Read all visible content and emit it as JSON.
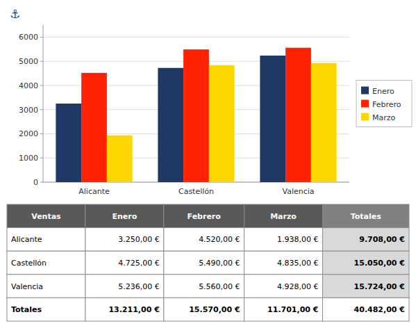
{
  "chart_data": [
    {
      "type": "bar",
      "annotations": [
        "⚓"
      ],
      "categories": [
        "Alicante",
        "Castellón",
        "Valencia"
      ],
      "series": [
        {
          "name": "Enero",
          "color": "#1F3864",
          "values": [
            3250,
            4725,
            5236
          ]
        },
        {
          "name": "Febrero",
          "color": "#FF2200",
          "values": [
            4520,
            5490,
            5560
          ]
        },
        {
          "name": "Marzo",
          "color": "#FFD700",
          "values": [
            1938,
            4835,
            4928
          ]
        }
      ],
      "ylim": [
        0,
        6500
      ],
      "yticks": [
        0,
        1000,
        2000,
        3000,
        4000,
        5000,
        6000
      ],
      "grid": true,
      "legend": "right"
    },
    {
      "type": "table",
      "columns": [
        "Ventas",
        "Enero",
        "Febrero",
        "Marzo",
        "Totales"
      ],
      "rows": [
        [
          "Alicante",
          "3.250,00 €",
          "4.520,00 €",
          "1.938,00 €",
          "9.708,00 €"
        ],
        [
          "Castellón",
          "4.725,00 €",
          "5.490,00 €",
          "4.835,00 €",
          "15.050,00 €"
        ],
        [
          "Valencia",
          "5.236,00 €",
          "5.560,00 €",
          "4.928,00 €",
          "15.724,00 €"
        ],
        [
          "Totales",
          "13.211,00 €",
          "15.570,00 €",
          "11.701,00 €",
          "40.482,00 €"
        ]
      ]
    }
  ]
}
